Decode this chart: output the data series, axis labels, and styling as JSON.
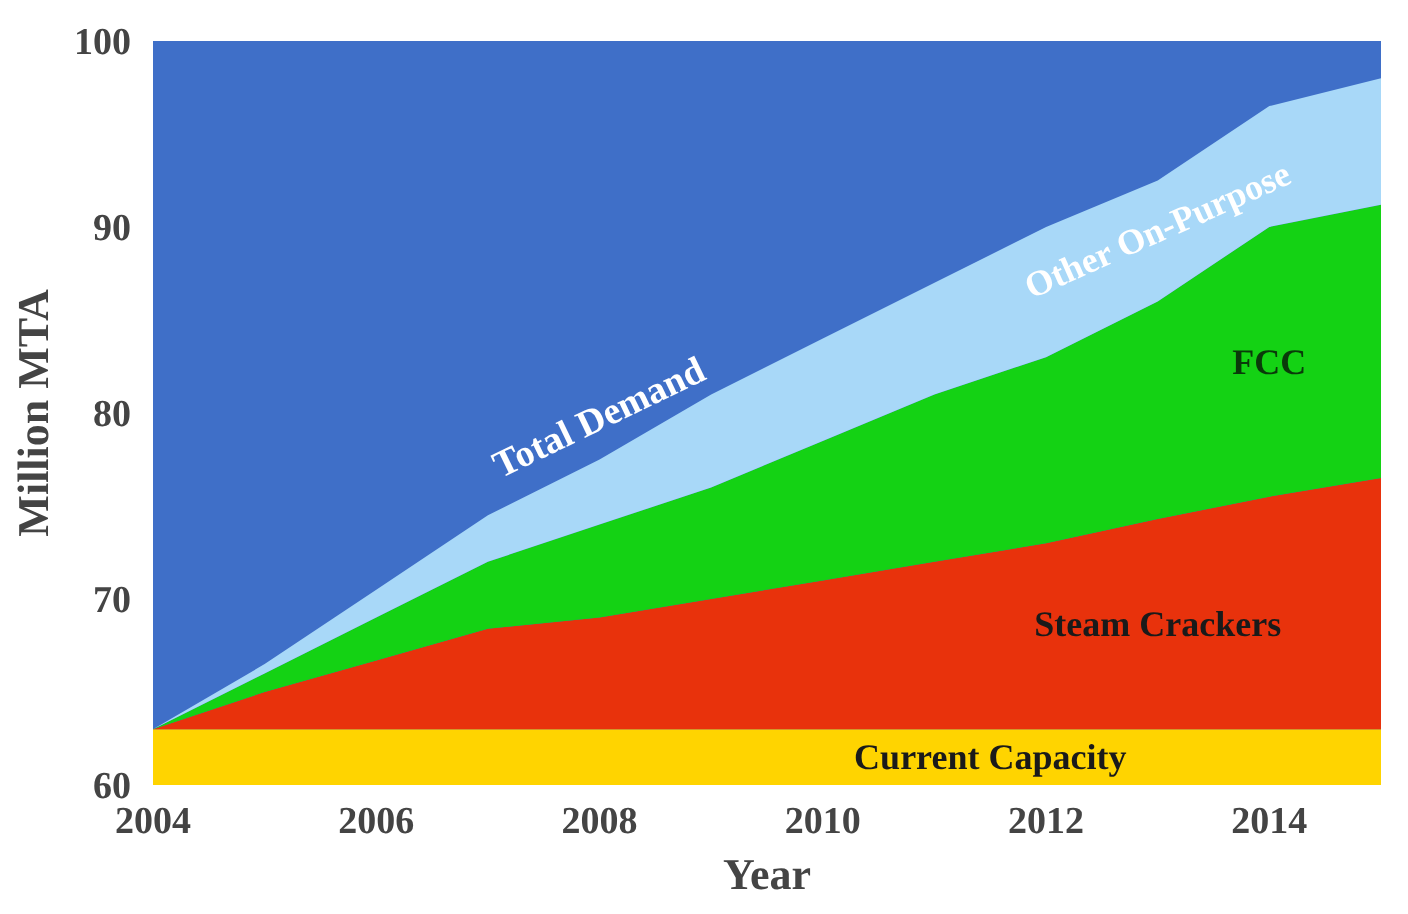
{
  "chart_data": {
    "type": "area",
    "xlabel": "Year",
    "ylabel": "Million MTA",
    "x": [
      2004,
      2005,
      2006,
      2007,
      2008,
      2009,
      2010,
      2011,
      2012,
      2013,
      2014,
      2015
    ],
    "series": [
      {
        "name": "Current Capacity",
        "color": "#ffd400",
        "values": [
          63,
          63,
          63,
          63,
          63,
          63,
          63,
          63,
          63,
          63,
          63,
          63
        ]
      },
      {
        "name": "Steam Crackers",
        "color": "#e8320c",
        "values": [
          63,
          65,
          66.7,
          68.4,
          69,
          70,
          71,
          72,
          73,
          74.3,
          75.5,
          76.5
        ]
      },
      {
        "name": "FCC",
        "color": "#14d214",
        "values": [
          63,
          66,
          69,
          72,
          74,
          76,
          78.5,
          81,
          83,
          86,
          90,
          91.2
        ]
      },
      {
        "name": "Other On-Purpose",
        "color": "#a8d8f8",
        "values": [
          63,
          66.5,
          70.5,
          74.5,
          77.5,
          81,
          84,
          87,
          90,
          92.5,
          96.5,
          98
        ]
      }
    ],
    "annotations": [
      "Total Demand"
    ],
    "xlim": [
      2004,
      2015
    ],
    "ylim": [
      60,
      100
    ],
    "xticks": [
      2004,
      2006,
      2008,
      2010,
      2012,
      2014
    ],
    "yticks": [
      60,
      70,
      80,
      90,
      100
    ],
    "grid": false
  }
}
